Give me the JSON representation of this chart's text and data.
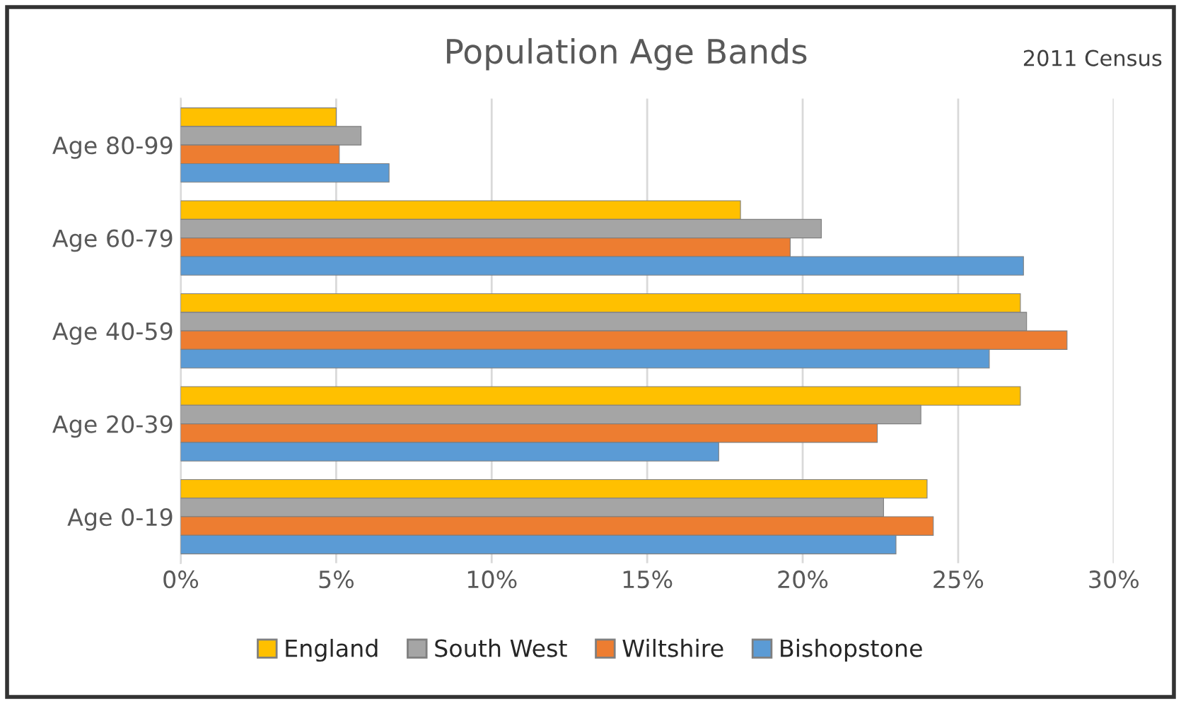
{
  "chart_data": {
    "type": "bar",
    "orientation": "horizontal",
    "title": "Population Age Bands",
    "annotations": [
      "2011 Census"
    ],
    "categories": [
      "Age 80-99",
      "Age 60-79",
      "Age 40-59",
      "Age 20-39",
      "Age 0-19"
    ],
    "series": [
      {
        "name": "England",
        "color": "#ffc000",
        "values": [
          5.0,
          18.0,
          27.0,
          27.0,
          24.0
        ]
      },
      {
        "name": "South West",
        "color": "#a5a5a5",
        "values": [
          5.8,
          20.6,
          27.2,
          23.8,
          22.6
        ]
      },
      {
        "name": "Wiltshire",
        "color": "#ed7d31",
        "values": [
          5.1,
          19.6,
          28.5,
          22.4,
          24.2
        ]
      },
      {
        "name": "Bishopstone",
        "color": "#5b9bd5",
        "values": [
          6.7,
          27.1,
          26.0,
          17.3,
          23.0
        ]
      }
    ],
    "xlim": [
      0,
      30
    ],
    "xticks": [
      {
        "value": 0,
        "label": "0%"
      },
      {
        "value": 5,
        "label": "5%"
      },
      {
        "value": 10,
        "label": "10%"
      },
      {
        "value": 15,
        "label": "15%"
      },
      {
        "value": 20,
        "label": "20%"
      },
      {
        "value": 25,
        "label": "25%"
      },
      {
        "value": 30,
        "label": "30%"
      }
    ],
    "grid": "x",
    "legend": "bottom"
  }
}
